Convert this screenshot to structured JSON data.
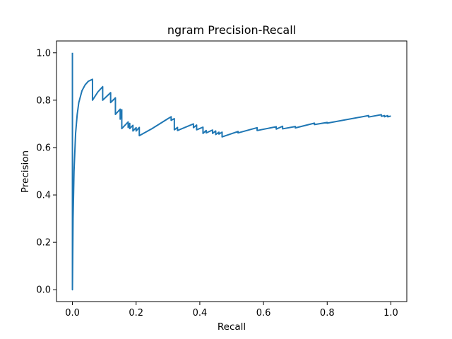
{
  "chart_data": {
    "type": "line",
    "title": "ngram Precision-Recall",
    "xlabel": "Recall",
    "ylabel": "Precision",
    "xlim": [
      -0.05,
      1.05
    ],
    "ylim": [
      -0.05,
      1.05
    ],
    "xticks": [
      0.0,
      0.2,
      0.4,
      0.6,
      0.8,
      1.0
    ],
    "xtick_labels": [
      "0.0",
      "0.2",
      "0.4",
      "0.6",
      "0.8",
      "1.0"
    ],
    "yticks": [
      0.0,
      0.2,
      0.4,
      0.6,
      0.8,
      1.0
    ],
    "ytick_labels": [
      "0.0",
      "0.2",
      "0.4",
      "0.6",
      "0.8",
      "1.0"
    ],
    "grid": false,
    "line_color": "#1f77b4",
    "series": [
      {
        "name": "",
        "x": [
          0.0,
          0.0,
          0.002,
          0.005,
          0.01,
          0.015,
          0.02,
          0.03,
          0.04,
          0.05,
          0.063,
          0.063,
          0.08,
          0.095,
          0.095,
          0.12,
          0.12,
          0.135,
          0.135,
          0.15,
          0.15,
          0.155,
          0.155,
          0.175,
          0.175,
          0.18,
          0.18,
          0.19,
          0.19,
          0.2,
          0.2,
          0.21,
          0.21,
          0.25,
          0.3,
          0.31,
          0.31,
          0.32,
          0.32,
          0.33,
          0.33,
          0.38,
          0.38,
          0.39,
          0.39,
          0.41,
          0.41,
          0.42,
          0.42,
          0.44,
          0.44,
          0.45,
          0.45,
          0.46,
          0.46,
          0.47,
          0.47,
          0.52,
          0.52,
          0.58,
          0.58,
          0.64,
          0.64,
          0.66,
          0.66,
          0.7,
          0.7,
          0.76,
          0.76,
          0.8,
          0.8,
          0.93,
          0.93,
          0.97,
          0.97,
          0.98,
          0.98,
          0.99,
          0.99,
          1.0
        ],
        "y": [
          1.0,
          0.0,
          0.3,
          0.5,
          0.66,
          0.74,
          0.79,
          0.84,
          0.865,
          0.88,
          0.888,
          0.8,
          0.835,
          0.857,
          0.8,
          0.832,
          0.79,
          0.81,
          0.74,
          0.762,
          0.72,
          0.76,
          0.68,
          0.708,
          0.685,
          0.702,
          0.68,
          0.694,
          0.67,
          0.684,
          0.67,
          0.685,
          0.65,
          0.68,
          0.722,
          0.73,
          0.715,
          0.722,
          0.675,
          0.685,
          0.672,
          0.7,
          0.684,
          0.695,
          0.675,
          0.686,
          0.66,
          0.672,
          0.662,
          0.674,
          0.66,
          0.67,
          0.655,
          0.665,
          0.657,
          0.665,
          0.645,
          0.668,
          0.662,
          0.684,
          0.672,
          0.688,
          0.678,
          0.69,
          0.679,
          0.689,
          0.683,
          0.703,
          0.697,
          0.706,
          0.703,
          0.735,
          0.729,
          0.739,
          0.732,
          0.735,
          0.73,
          0.735,
          0.73,
          0.733
        ]
      }
    ]
  }
}
